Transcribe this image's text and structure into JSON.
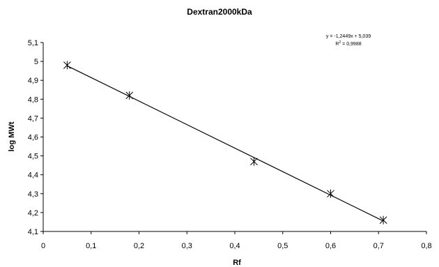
{
  "chart_data": {
    "type": "scatter",
    "title": "Dextran2000kDa",
    "xlabel": "Rf",
    "ylabel": "log MWt",
    "xlim": [
      0,
      0.8
    ],
    "ylim": [
      4.1,
      5.1
    ],
    "x_ticks": [
      "0",
      "0,1",
      "0,2",
      "0,3",
      "0,4",
      "0,5",
      "0,6",
      "0,7",
      "0,8"
    ],
    "y_ticks": [
      "4,1",
      "4,2",
      "4,3",
      "4,4",
      "4,5",
      "4,6",
      "4,7",
      "4,8",
      "4,9",
      "5",
      "5,1"
    ],
    "points": [
      {
        "x": 0.05,
        "y": 4.98
      },
      {
        "x": 0.18,
        "y": 4.82
      },
      {
        "x": 0.44,
        "y": 4.47
      },
      {
        "x": 0.6,
        "y": 4.3
      },
      {
        "x": 0.71,
        "y": 4.16
      }
    ],
    "trendline": {
      "slope": -1.2449,
      "intercept": 5.039,
      "x_range": [
        0.05,
        0.71
      ],
      "equation": "y = -1,2449x + 5,039",
      "r2_prefix": "R",
      "r2_sup": "2",
      "r2_value": " = 0,9988"
    },
    "marker": "asterisk",
    "grid": false,
    "legend": "none"
  }
}
